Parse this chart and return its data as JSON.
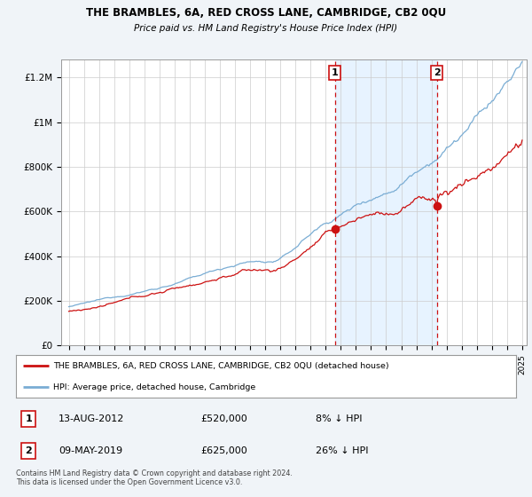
{
  "title1": "THE BRAMBLES, 6A, RED CROSS LANE, CAMBRIDGE, CB2 0QU",
  "title2": "Price paid vs. HM Land Registry's House Price Index (HPI)",
  "ylabel_ticks": [
    "£0",
    "£200K",
    "£400K",
    "£600K",
    "£800K",
    "£1M",
    "£1.2M"
  ],
  "ytick_values": [
    0,
    200000,
    400000,
    600000,
    800000,
    1000000,
    1200000
  ],
  "ylim": [
    0,
    1280000
  ],
  "xlim_start": 1994.5,
  "xlim_end": 2025.3,
  "hpi_color": "#7aadd4",
  "price_color": "#cc1111",
  "sale1_x": 2012.617,
  "sale1_y": 520000,
  "sale1_label": "1",
  "sale2_x": 2019.356,
  "sale2_y": 625000,
  "sale2_label": "2",
  "vline1_x": 2012.617,
  "vline2_x": 2019.356,
  "legend_line1": "THE BRAMBLES, 6A, RED CROSS LANE, CAMBRIDGE, CB2 0QU (detached house)",
  "legend_line2": "HPI: Average price, detached house, Cambridge",
  "table_row1_num": "1",
  "table_row1_date": "13-AUG-2012",
  "table_row1_price": "£520,000",
  "table_row1_hpi": "8% ↓ HPI",
  "table_row2_num": "2",
  "table_row2_date": "09-MAY-2019",
  "table_row2_price": "£625,000",
  "table_row2_hpi": "26% ↓ HPI",
  "footer": "Contains HM Land Registry data © Crown copyright and database right 2024.\nThis data is licensed under the Open Government Licence v3.0.",
  "background_color": "#f0f4f8",
  "plot_bg_color": "#ffffff",
  "span_color": "#ddeeff"
}
